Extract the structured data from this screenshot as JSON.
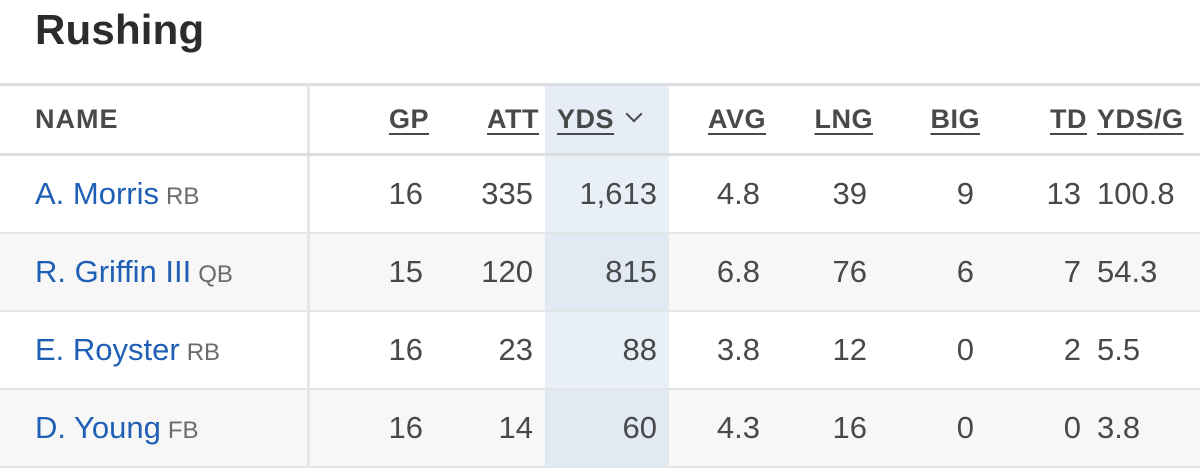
{
  "section": {
    "title": "Rushing"
  },
  "table": {
    "headers": {
      "name": "NAME",
      "gp": "GP",
      "att": "ATT",
      "yds": "YDS",
      "avg": "AVG",
      "lng": "LNG",
      "big": "BIG",
      "td": "TD",
      "ypg": "YDS/G"
    },
    "sorted_column": "YDS",
    "sort_direction": "descending",
    "rows": [
      {
        "name": "A. Morris",
        "pos": "RB",
        "gp": "16",
        "att": "335",
        "yds": "1,613",
        "avg": "4.8",
        "lng": "39",
        "big": "9",
        "td": "13",
        "ypg": "100.8"
      },
      {
        "name": "R. Griffin III",
        "pos": "QB",
        "gp": "15",
        "att": "120",
        "yds": "815",
        "avg": "6.8",
        "lng": "76",
        "big": "6",
        "td": "7",
        "ypg": "54.3"
      },
      {
        "name": "E. Royster",
        "pos": "RB",
        "gp": "16",
        "att": "23",
        "yds": "88",
        "avg": "3.8",
        "lng": "12",
        "big": "0",
        "td": "2",
        "ypg": "5.5"
      },
      {
        "name": "D. Young",
        "pos": "FB",
        "gp": "16",
        "att": "14",
        "yds": "60",
        "avg": "4.3",
        "lng": "16",
        "big": "0",
        "td": "0",
        "ypg": "3.8"
      }
    ]
  },
  "colors": {
    "link": "#1f5fb5",
    "text": "#48494a",
    "sorted_column_bg": "#e6edf6",
    "row_alt_bg": "#f7f7f8"
  }
}
